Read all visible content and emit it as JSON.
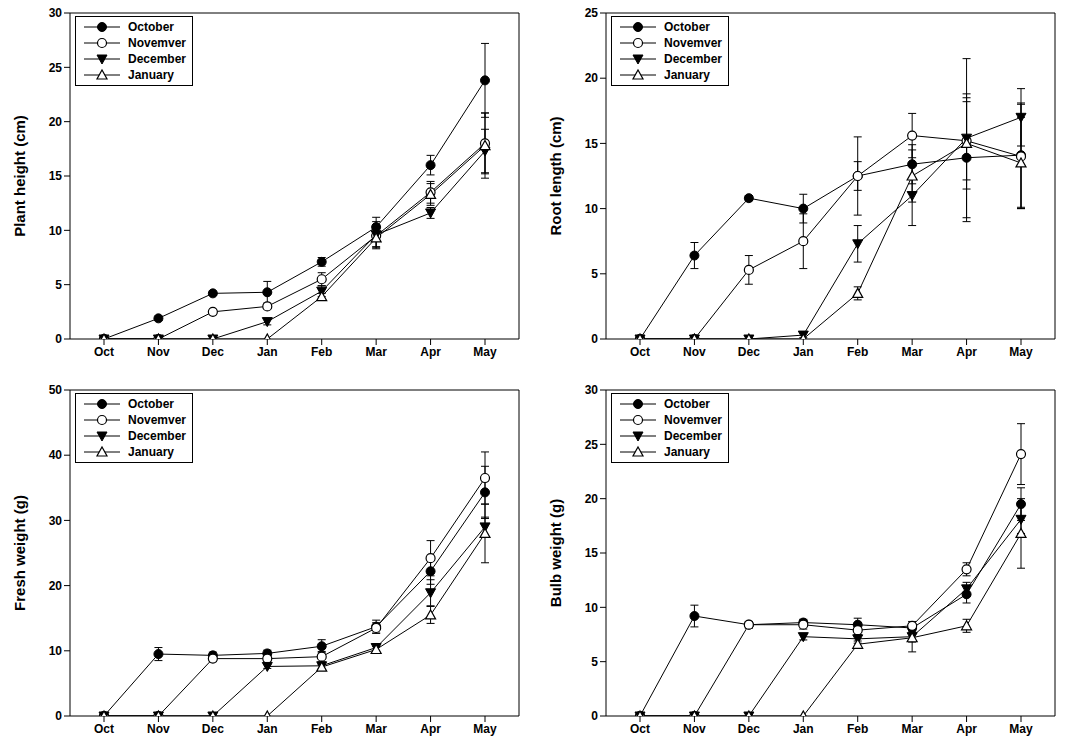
{
  "chart_data": [
    {
      "type": "line",
      "y_label": "Plant height (cm)",
      "categories": [
        "Oct",
        "Nov",
        "Dec",
        "Jan",
        "Feb",
        "Mar",
        "Apr",
        "May"
      ],
      "ylim": [
        0,
        30
      ],
      "yticks": [
        0,
        5,
        10,
        15,
        20,
        25,
        30
      ],
      "legend": "upper left",
      "series": [
        {
          "name": "October",
          "color": "#000000",
          "marker": "circle",
          "values": [
            0,
            1.9,
            4.2,
            4.3,
            7.1,
            10.3,
            16.0,
            23.8
          ],
          "errors": [
            0,
            0.2,
            0.2,
            1.0,
            0.4,
            0.9,
            0.9,
            3.4
          ]
        },
        {
          "name": "Novemver",
          "color": "#000000",
          "marker": "open_circle",
          "values": [
            0,
            0,
            2.5,
            3.0,
            5.5,
            9.5,
            13.5,
            18.0
          ],
          "errors": [
            0,
            0,
            0.1,
            0.2,
            0.6,
            1.0,
            1.0,
            2.8
          ]
        },
        {
          "name": "December",
          "color": "#000000",
          "marker": "triangle_down",
          "values": [
            0,
            0,
            0,
            1.6,
            4.4,
            9.6,
            11.6,
            17.3
          ],
          "errors": [
            0,
            0,
            0,
            0.3,
            0.5,
            1.2,
            0.5,
            2.0
          ]
        },
        {
          "name": "January",
          "color": "#000000",
          "marker": "open_triangle_up",
          "values": [
            0,
            0,
            0,
            0,
            3.9,
            9.3,
            13.3,
            17.8
          ],
          "errors": [
            0,
            0,
            0,
            0,
            0.3,
            1.0,
            1.0,
            3.0
          ]
        }
      ]
    },
    {
      "type": "line",
      "y_label": "Root length (cm)",
      "categories": [
        "Oct",
        "Nov",
        "Dec",
        "Jan",
        "Feb",
        "Mar",
        "Apr",
        "May"
      ],
      "ylim": [
        0,
        25
      ],
      "yticks": [
        0,
        5,
        10,
        15,
        20,
        25
      ],
      "legend": "upper left",
      "series": [
        {
          "name": "October",
          "color": "#000000",
          "marker": "circle",
          "values": [
            0,
            6.4,
            10.8,
            10.0,
            12.5,
            13.4,
            13.9,
            14.1
          ],
          "errors": [
            0,
            1.0,
            0.2,
            1.1,
            3.0,
            1.5,
            4.9,
            4.0
          ]
        },
        {
          "name": "Novemver",
          "color": "#000000",
          "marker": "open_circle",
          "values": [
            0,
            0,
            5.3,
            7.5,
            12.5,
            15.6,
            15.2,
            14.0
          ],
          "errors": [
            0,
            0,
            1.1,
            2.1,
            1.1,
            1.7,
            3.0,
            4.0
          ]
        },
        {
          "name": "December",
          "color": "#000000",
          "marker": "triangle_down",
          "values": [
            0,
            0,
            0,
            0.3,
            7.3,
            11.0,
            15.4,
            17.0
          ],
          "errors": [
            0,
            0,
            0,
            0.2,
            1.4,
            2.3,
            6.1,
            2.2
          ]
        },
        {
          "name": "January",
          "color": "#000000",
          "marker": "open_triangle_up",
          "values": [
            0,
            0,
            0,
            0,
            3.5,
            12.5,
            15.0,
            13.5
          ],
          "errors": [
            0,
            0,
            0,
            0,
            0.5,
            2.0,
            3.5,
            3.5
          ]
        }
      ]
    },
    {
      "type": "line",
      "y_label": "Fresh weight (g)",
      "categories": [
        "Oct",
        "Nov",
        "Dec",
        "Jan",
        "Feb",
        "Mar",
        "Apr",
        "May"
      ],
      "ylim": [
        0,
        50
      ],
      "yticks": [
        0,
        10,
        20,
        30,
        40,
        50
      ],
      "legend": "upper left",
      "series": [
        {
          "name": "October",
          "color": "#000000",
          "marker": "circle",
          "values": [
            0,
            9.5,
            9.3,
            9.6,
            10.7,
            13.7,
            22.2,
            34.3
          ],
          "errors": [
            0,
            1.0,
            0.5,
            0.5,
            1.0,
            1.0,
            2.0,
            4.0
          ]
        },
        {
          "name": "Novemver",
          "color": "#000000",
          "marker": "open_circle",
          "values": [
            0,
            0,
            8.8,
            8.8,
            9.1,
            13.5,
            24.2,
            36.5
          ],
          "errors": [
            0,
            0,
            0.4,
            0.5,
            0.8,
            0.8,
            2.7,
            4.0
          ]
        },
        {
          "name": "December",
          "color": "#000000",
          "marker": "triangle_down",
          "values": [
            0,
            0,
            0,
            7.6,
            7.7,
            10.5,
            18.9,
            29.0
          ],
          "errors": [
            0,
            0,
            0,
            0.3,
            0.5,
            0.6,
            2.0,
            1.5
          ]
        },
        {
          "name": "January",
          "color": "#000000",
          "marker": "open_triangle_up",
          "values": [
            0,
            0,
            0,
            0,
            7.5,
            10.2,
            15.5,
            28.0
          ],
          "errors": [
            0,
            0,
            0,
            0,
            0.4,
            0.5,
            1.3,
            4.5
          ]
        }
      ]
    },
    {
      "type": "line",
      "y_label": "Bulb weight (g)",
      "categories": [
        "Oct",
        "Nov",
        "Dec",
        "Jan",
        "Feb",
        "Mar",
        "Apr",
        "May"
      ],
      "ylim": [
        0,
        30
      ],
      "yticks": [
        0,
        5,
        10,
        15,
        20,
        25,
        30
      ],
      "legend": "upper left",
      "series": [
        {
          "name": "October",
          "color": "#000000",
          "marker": "circle",
          "values": [
            0,
            9.2,
            8.4,
            8.6,
            8.4,
            8.1,
            11.2,
            19.5
          ],
          "errors": [
            0,
            1.0,
            0.3,
            0.3,
            0.6,
            0.4,
            0.8,
            1.5
          ]
        },
        {
          "name": "Novemver",
          "color": "#000000",
          "marker": "open_circle",
          "values": [
            0,
            0,
            8.4,
            8.4,
            7.9,
            8.3,
            13.5,
            24.1
          ],
          "errors": [
            0,
            0,
            0.3,
            0.4,
            0.5,
            0.4,
            0.6,
            2.8
          ]
        },
        {
          "name": "December",
          "color": "#000000",
          "marker": "triangle_down",
          "values": [
            0,
            0,
            0,
            7.3,
            7.1,
            7.3,
            11.7,
            18.1
          ],
          "errors": [
            0,
            0,
            0,
            0.3,
            0.4,
            0.5,
            0.6,
            1.3
          ]
        },
        {
          "name": "January",
          "color": "#000000",
          "marker": "open_triangle_up",
          "values": [
            0,
            0,
            0,
            0,
            6.6,
            7.2,
            8.3,
            16.8
          ],
          "errors": [
            0,
            0,
            0,
            0,
            0.3,
            1.3,
            0.6,
            3.2
          ]
        }
      ]
    }
  ]
}
